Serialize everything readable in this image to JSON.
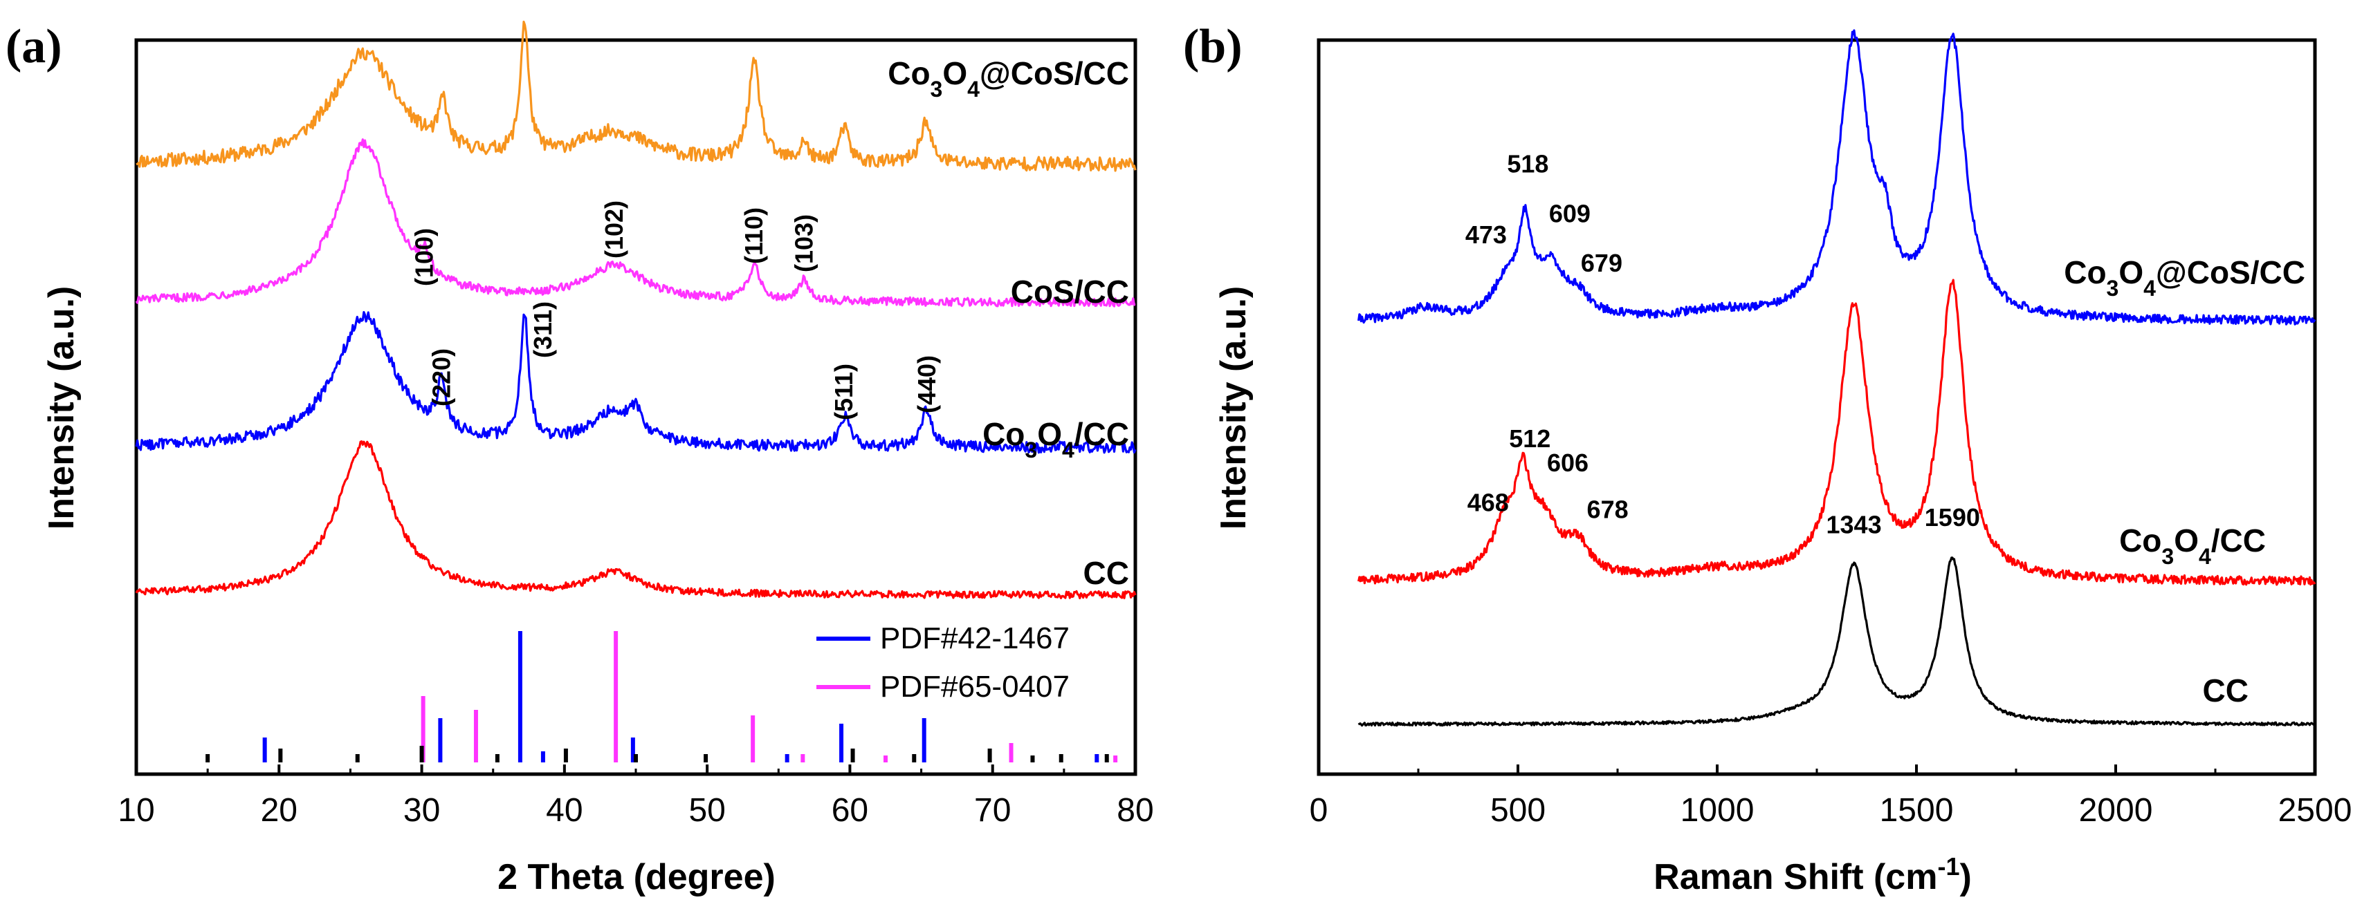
{
  "colors": {
    "orange": "#F7941D",
    "magenta": "#FF33FF",
    "blue": "#0000FF",
    "red": "#FF0000",
    "black": "#000000",
    "ref_blue": "#0000FF",
    "ref_magenta": "#FF33FF",
    "ref_black": "#000000"
  },
  "chart_data": [
    {
      "panel": "(a)",
      "type": "line",
      "xlabel": "2 Theta (degree)",
      "ylabel": "Intensity (a.u.)",
      "xlim": [
        10,
        80
      ],
      "xticks": [
        10,
        20,
        30,
        40,
        50,
        60,
        70,
        80
      ],
      "series": [
        {
          "name": "Co3O4@CoS/CC",
          "label_parts": [
            "Co",
            "3",
            "O",
            "4",
            "@CoS/CC"
          ],
          "color": "orange",
          "offset": 3.0,
          "baseline": 0.15,
          "noise": 0.05,
          "peaks": [
            [
              26,
              0.8,
              2.8
            ],
            [
              31.5,
              0.32,
              0.35
            ],
            [
              37.2,
              0.95,
              0.35
            ],
            [
              43.5,
              0.22,
              3.0
            ],
            [
              53.3,
              0.7,
              0.5
            ],
            [
              56.8,
              0.15,
              0.3
            ],
            [
              59.6,
              0.25,
              0.4
            ],
            [
              65.3,
              0.3,
              0.45
            ]
          ],
          "annotations": []
        },
        {
          "name": "CoS/CC",
          "label_parts": [
            "CoS/CC"
          ],
          "color": "magenta",
          "offset": 2.0,
          "baseline": 0.12,
          "noise": 0.03,
          "peaks": [
            [
              26,
              1.15,
              2.3
            ],
            [
              30.2,
              0.15,
              0.4
            ],
            [
              43.5,
              0.25,
              2.5
            ],
            [
              53.3,
              0.25,
              0.5
            ],
            [
              56.8,
              0.15,
              0.45
            ]
          ],
          "annotations": [
            {
              "text": "(100)",
              "x": 30.2,
              "rel_y": 0.12
            },
            {
              "text": "(102)",
              "x": 43.5,
              "rel_y": 0.32
            },
            {
              "text": "(110)",
              "x": 53.3,
              "rel_y": 0.28
            },
            {
              "text": "(103)",
              "x": 56.8,
              "rel_y": 0.22
            }
          ]
        },
        {
          "name": "Co3O4/CC",
          "label_parts": [
            "Co",
            "3",
            "O",
            "4",
            "/CC"
          ],
          "color": "blue",
          "offset": 1.0,
          "baseline": 0.12,
          "noise": 0.04,
          "peaks": [
            [
              26,
              0.95,
              2.5
            ],
            [
              31.4,
              0.35,
              0.35
            ],
            [
              37.2,
              0.9,
              0.35
            ],
            [
              43.5,
              0.25,
              2.0
            ],
            [
              45,
              0.15,
              0.4
            ],
            [
              59.6,
              0.22,
              0.45
            ],
            [
              65.4,
              0.28,
              0.45
            ]
          ],
          "annotations": [
            {
              "text": "(220)",
              "x": 31.4,
              "rel_y": 0.3
            },
            {
              "text": "(311)",
              "x": 38.5,
              "rel_y": 0.65
            },
            {
              "text": "(511)",
              "x": 59.6,
              "rel_y": 0.2
            },
            {
              "text": "(440)",
              "x": 65.4,
              "rel_y": 0.25
            }
          ]
        },
        {
          "name": "CC",
          "label_parts": [
            "CC"
          ],
          "color": "red",
          "offset": 0.0,
          "baseline": 0.12,
          "noise": 0.025,
          "peaks": [
            [
              26,
              1.1,
              2.3
            ],
            [
              43.5,
              0.15,
              2.0
            ]
          ],
          "annotations": []
        }
      ],
      "reference_patterns": [
        {
          "name": "PDF#42-1467",
          "color": "ref_blue",
          "lines": [
            [
              19,
              0.18
            ],
            [
              31.3,
              0.32
            ],
            [
              36.9,
              0.95
            ],
            [
              38.5,
              0.08
            ],
            [
              44.8,
              0.18
            ],
            [
              55.6,
              0.06
            ],
            [
              59.4,
              0.28
            ],
            [
              65.2,
              0.32
            ],
            [
              77.3,
              0.06
            ]
          ]
        },
        {
          "name": "PDF#65-0407",
          "color": "ref_magenta",
          "lines": [
            [
              30.1,
              0.48
            ],
            [
              33.8,
              0.38
            ],
            [
              43.6,
              0.95
            ],
            [
              53.2,
              0.34
            ],
            [
              56.7,
              0.06
            ],
            [
              62.5,
              0.05
            ],
            [
              71.3,
              0.14
            ],
            [
              78.6,
              0.05
            ]
          ]
        },
        {
          "name": "",
          "color": "ref_black",
          "lines": [
            [
              15,
              0.06
            ],
            [
              20.1,
              0.1
            ],
            [
              25.5,
              0.06
            ],
            [
              30,
              0.12
            ],
            [
              35.3,
              0.06
            ],
            [
              40.1,
              0.1
            ],
            [
              45,
              0.06
            ],
            [
              49.9,
              0.06
            ],
            [
              60.2,
              0.1
            ],
            [
              64.5,
              0.06
            ],
            [
              69.8,
              0.1
            ],
            [
              72.8,
              0.05
            ],
            [
              74.8,
              0.06
            ],
            [
              78,
              0.06
            ]
          ]
        }
      ]
    },
    {
      "panel": "(b)",
      "type": "line",
      "xlabel_parts": [
        "Raman Shift (cm",
        "-1",
        ")"
      ],
      "ylabel": "Intensity (a.u.)",
      "xlim": [
        0,
        2500
      ],
      "xticks": [
        0,
        500,
        1000,
        1500,
        2000,
        2500
      ],
      "series": [
        {
          "name": "Co3O4@CoS/CC",
          "label_parts": [
            "Co",
            "3",
            "O",
            "4",
            "@CoS/CC"
          ],
          "color": "blue",
          "offset": 2.05,
          "baseline": 0.05,
          "noise": 0.03,
          "peaks": [
            [
              270,
              0.08,
              50
            ],
            [
              473,
              0.25,
              40
            ],
            [
              518,
              0.55,
              18
            ],
            [
              580,
              0.35,
              45
            ],
            [
              650,
              0.12,
              35
            ],
            [
              1000,
              0.05,
              100
            ],
            [
              1343,
              1.95,
              45
            ],
            [
              1420,
              0.38,
              22
            ],
            [
              1590,
              1.95,
              38
            ]
          ],
          "annotations": [
            {
              "text": "473",
              "x": 420,
              "rel_y": 0.55
            },
            {
              "text": "518",
              "x": 525,
              "rel_y": 1.05
            },
            {
              "text": "609",
              "x": 630,
              "rel_y": 0.7
            },
            {
              "text": "679",
              "x": 710,
              "rel_y": 0.35
            }
          ]
        },
        {
          "name": "Co3O4/CC",
          "label_parts": [
            "Co",
            "3",
            "O",
            "4",
            "/CC"
          ],
          "color": "red",
          "offset": 1.0,
          "baseline": 0.05,
          "noise": 0.03,
          "peaks": [
            [
              468,
              0.35,
              40
            ],
            [
              512,
              0.5,
              20
            ],
            [
              560,
              0.4,
              50
            ],
            [
              650,
              0.2,
              35
            ],
            [
              1000,
              0.06,
              120
            ],
            [
              1343,
              1.9,
              45
            ],
            [
              1590,
              2.05,
              38
            ]
          ],
          "annotations": [
            {
              "text": "468",
              "x": 425,
              "rel_y": 0.5
            },
            {
              "text": "512",
              "x": 530,
              "rel_y": 0.95
            },
            {
              "text": "606",
              "x": 625,
              "rel_y": 0.78
            },
            {
              "text": "678",
              "x": 725,
              "rel_y": 0.45
            }
          ]
        },
        {
          "name": "CC",
          "label_parts": [
            "CC"
          ],
          "color": "black",
          "offset": 0.0,
          "baseline": 0.0,
          "noise": 0.01,
          "peaks": [
            [
              1343,
              1.1,
              40
            ],
            [
              1590,
              1.15,
              35
            ],
            [
              1200,
              0.04,
              80
            ]
          ],
          "annotations": [
            {
              "text": "1343",
              "x": 1343,
              "rel_y": 1.35
            },
            {
              "text": "1590",
              "x": 1590,
              "rel_y": 1.4
            }
          ]
        }
      ]
    }
  ]
}
